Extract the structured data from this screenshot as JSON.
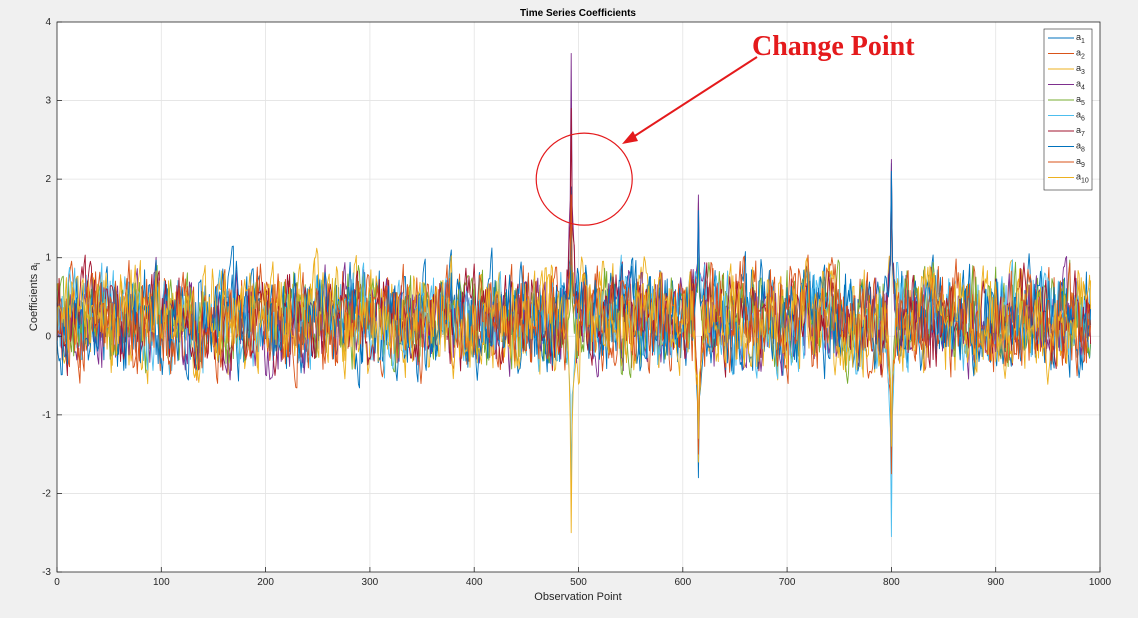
{
  "chart_data": {
    "type": "line",
    "title": "Time Series Coefficients",
    "xlabel": "Observation Point",
    "ylabel": "Coefficients a",
    "ylabel_subscript": "i",
    "xlim": [
      0,
      1000
    ],
    "ylim": [
      -3,
      4
    ],
    "xticks": [
      0,
      100,
      200,
      300,
      400,
      500,
      600,
      700,
      800,
      900,
      1000
    ],
    "yticks": [
      -3,
      -2,
      -1,
      0,
      1,
      2,
      3,
      4
    ],
    "grid": true,
    "legend_position": "top-right",
    "n_points": 992,
    "series": [
      {
        "name": "a",
        "sub": "1",
        "color": "#0072BD",
        "base_scale": 0.4
      },
      {
        "name": "a",
        "sub": "2",
        "color": "#D95319",
        "base_scale": 0.4
      },
      {
        "name": "a",
        "sub": "3",
        "color": "#EDB120",
        "base_scale": 0.4
      },
      {
        "name": "a",
        "sub": "4",
        "color": "#7E2F8E",
        "base_scale": 0.38
      },
      {
        "name": "a",
        "sub": "5",
        "color": "#77AC30",
        "base_scale": 0.38
      },
      {
        "name": "a",
        "sub": "6",
        "color": "#4DBEEE",
        "base_scale": 0.38
      },
      {
        "name": "a",
        "sub": "7",
        "color": "#A2142F",
        "base_scale": 0.36
      },
      {
        "name": "a",
        "sub": "8",
        "color": "#0072BD",
        "base_scale": 0.38
      },
      {
        "name": "a",
        "sub": "9",
        "color": "#D95319",
        "base_scale": 0.38
      },
      {
        "name": "a",
        "sub": "10",
        "color": "#EDB120",
        "base_scale": 0.38
      }
    ],
    "spikes": [
      {
        "x": 493,
        "values": [
          1.9,
          1.2,
          1.8,
          3.6,
          0.9,
          -1.9,
          2.9,
          1.4,
          1.8,
          -2.5
        ]
      },
      {
        "x": 615,
        "values": [
          -1.8,
          1.7,
          -1.6,
          1.8,
          1.0,
          1.4,
          -1.4,
          1.6,
          -1.5,
          -1.3
        ]
      },
      {
        "x": 800,
        "values": [
          2.2,
          -1.7,
          2.1,
          2.25,
          -1.6,
          -2.55,
          1.9,
          2.1,
          -1.75,
          -1.4
        ]
      }
    ],
    "annotation": {
      "text": "Change Point",
      "target": {
        "x": 505,
        "y": 2.0
      },
      "color": "#e41a1c"
    }
  }
}
